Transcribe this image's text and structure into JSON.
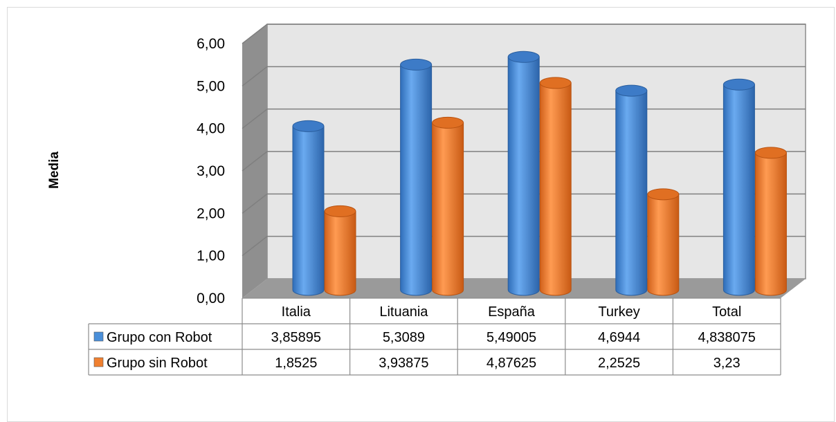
{
  "chart_data": {
    "type": "bar",
    "title": "",
    "xlabel": "",
    "ylabel": "Media",
    "ylim": [
      0,
      6
    ],
    "yticks": [
      "0,00",
      "1,00",
      "2,00",
      "3,00",
      "4,00",
      "5,00",
      "6,00"
    ],
    "categories": [
      "Italia",
      "Lituania",
      "España",
      "Turkey",
      "Total"
    ],
    "series": [
      {
        "name": "Grupo con Robot",
        "color": "#4a8fd9",
        "values": [
          3.85895,
          5.3089,
          5.49005,
          4.6944,
          4.838075
        ],
        "labels": [
          "3,85895",
          "5,3089",
          "5,49005",
          "4,6944",
          "4,838075"
        ]
      },
      {
        "name": "Grupo sin Robot",
        "color": "#f08030",
        "values": [
          1.8525,
          3.93875,
          4.87625,
          2.2525,
          3.23
        ],
        "labels": [
          "1,8525",
          "3,93875",
          "4,87625",
          "2,2525",
          "3,23"
        ]
      }
    ],
    "grid": true,
    "legend": "data-table"
  }
}
